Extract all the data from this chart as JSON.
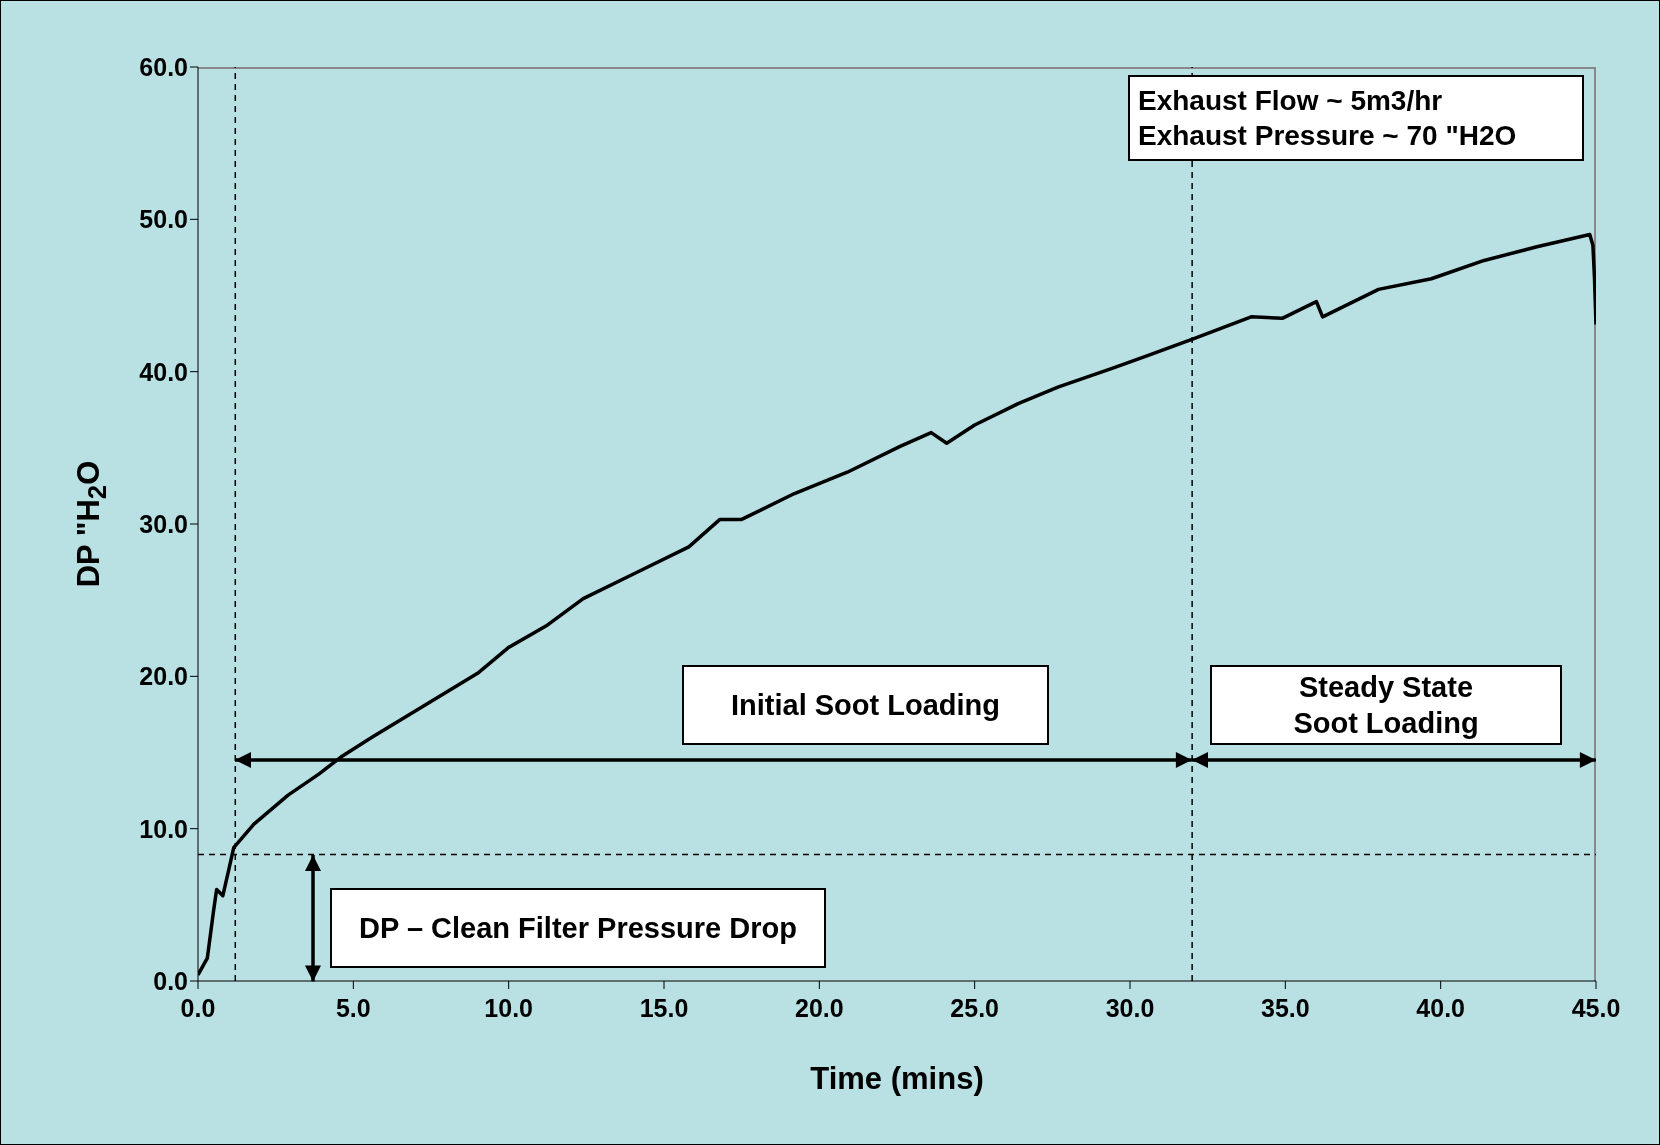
{
  "chart_data": {
    "type": "line",
    "xlabel": "Time (mins)",
    "ylabel": "DP \"H$_{2}$O",
    "x": [
      0,
      0.3,
      0.5,
      0.6,
      0.8,
      1.0,
      1.15,
      1.8,
      2.9,
      3.9,
      4.6,
      5.6,
      7.3,
      9.0,
      10.0,
      11.2,
      12.4,
      14.1,
      15.8,
      16.8,
      17.5,
      19.2,
      20.9,
      22.6,
      23.6,
      24.1,
      25.0,
      26.4,
      27.7,
      29.4,
      30.5,
      32.1,
      33.9,
      34.9,
      36.0,
      36.2,
      38.0,
      39.7,
      41.4,
      43.1,
      44.8,
      44.9,
      44.95,
      45.0
    ],
    "series": [
      {
        "color": "#000000",
        "values": [
          0.4,
          1.5,
          4.6,
          6.0,
          5.6,
          7.4,
          8.75,
          10.3,
          12.2,
          13.6,
          14.7,
          16.0,
          18.1,
          20.2,
          21.9,
          23.3,
          25.1,
          26.8,
          28.5,
          30.3,
          30.3,
          32.0,
          33.4,
          35.1,
          36.0,
          35.3,
          36.5,
          37.9,
          39.0,
          40.2,
          41.0,
          42.2,
          43.6,
          43.5,
          44.6,
          43.6,
          45.4,
          46.1,
          47.3,
          48.2,
          49.0,
          48.3,
          46.2,
          43.1
        ]
      }
    ],
    "xlim": [
      0,
      45
    ],
    "xticks": [
      {
        "value": 0,
        "label": "0.0"
      },
      {
        "value": 5,
        "label": "5.0"
      },
      {
        "value": 10,
        "label": "10.0"
      },
      {
        "value": 15,
        "label": "15.0"
      },
      {
        "value": 20,
        "label": "20.0"
      },
      {
        "value": 25,
        "label": "25.0"
      },
      {
        "value": 30,
        "label": "30.0"
      },
      {
        "value": 35,
        "label": "35.0"
      },
      {
        "value": 40,
        "label": "40.0"
      },
      {
        "value": 45,
        "label": "45.0"
      }
    ],
    "ylim": [
      0,
      60
    ],
    "yticks": [
      {
        "value": 0,
        "label": "0.0"
      },
      {
        "value": 10,
        "label": "10.0"
      },
      {
        "value": 20,
        "label": "20.0"
      },
      {
        "value": 30,
        "label": "30.0"
      },
      {
        "value": 40,
        "label": "40.0"
      },
      {
        "value": 50,
        "label": "50.0"
      },
      {
        "value": 60,
        "label": "60.0"
      }
    ],
    "ref_lines": [
      {
        "axis": "x",
        "value": 1.2,
        "color": "#000000",
        "line_style": "dashed"
      },
      {
        "axis": "x",
        "value": 32.0,
        "color": "#000000",
        "line_style": "dashed"
      },
      {
        "axis": "y",
        "value": 8.3,
        "color": "#000000",
        "line_style": "dashed"
      }
    ],
    "annotations": [
      "Exhaust Flow ~ 5m3/hr",
      "Exhaust Pressure ~ 70 \"H2O",
      "Initial Soot Loading",
      "Steady State Soot Loading",
      "DP – Clean Filter Pressure Drop"
    ],
    "grid": false,
    "legend": false,
    "marker": "none",
    "line_style": "solid"
  }
}
